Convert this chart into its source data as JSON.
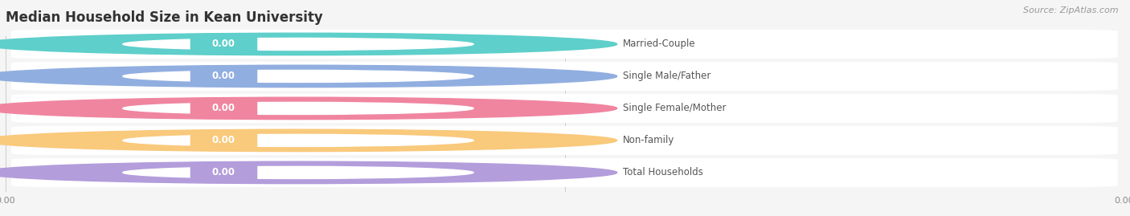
{
  "title": "Median Household Size in Kean University",
  "source": "Source: ZipAtlas.com",
  "categories": [
    "Married-Couple",
    "Single Male/Father",
    "Single Female/Mother",
    "Non-family",
    "Total Households"
  ],
  "values": [
    0.0,
    0.0,
    0.0,
    0.0,
    0.0
  ],
  "bar_colors": [
    "#5ecfca",
    "#91aee0",
    "#f085a0",
    "#f9c97c",
    "#b39ddb"
  ],
  "bar_bg_color": "#efefef",
  "outer_bg_color": "#f5f5f5",
  "title_fontsize": 12,
  "label_fontsize": 8.5,
  "value_fontsize": 8.5,
  "source_fontsize": 8
}
